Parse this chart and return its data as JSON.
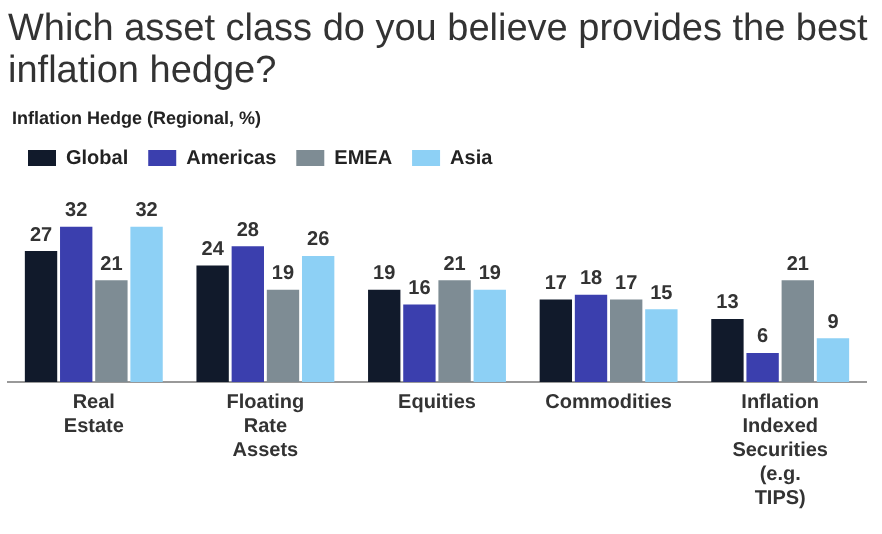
{
  "chart_data": {
    "type": "bar",
    "title": "Which asset class do you believe provides the best inflation hedge?",
    "subtitle": "Inflation Hedge (Regional, %)",
    "categories": [
      "Real Estate",
      "Floating Rate Assets",
      "Equities",
      "Commodities",
      "Inflation Indexed Securities (e.g. TIPS)"
    ],
    "series": [
      {
        "name": "Global",
        "color": "#111a2b",
        "values": [
          27,
          24,
          19,
          17,
          13
        ]
      },
      {
        "name": "Americas",
        "color": "#3b3fae",
        "values": [
          32,
          28,
          16,
          18,
          6
        ]
      },
      {
        "name": "EMEA",
        "color": "#7e8c94",
        "values": [
          21,
          19,
          21,
          17,
          21
        ]
      },
      {
        "name": "Asia",
        "color": "#8dd0f5",
        "values": [
          32,
          26,
          19,
          15,
          9
        ]
      }
    ],
    "data_labels": true,
    "grid": false,
    "legend": "top left"
  }
}
